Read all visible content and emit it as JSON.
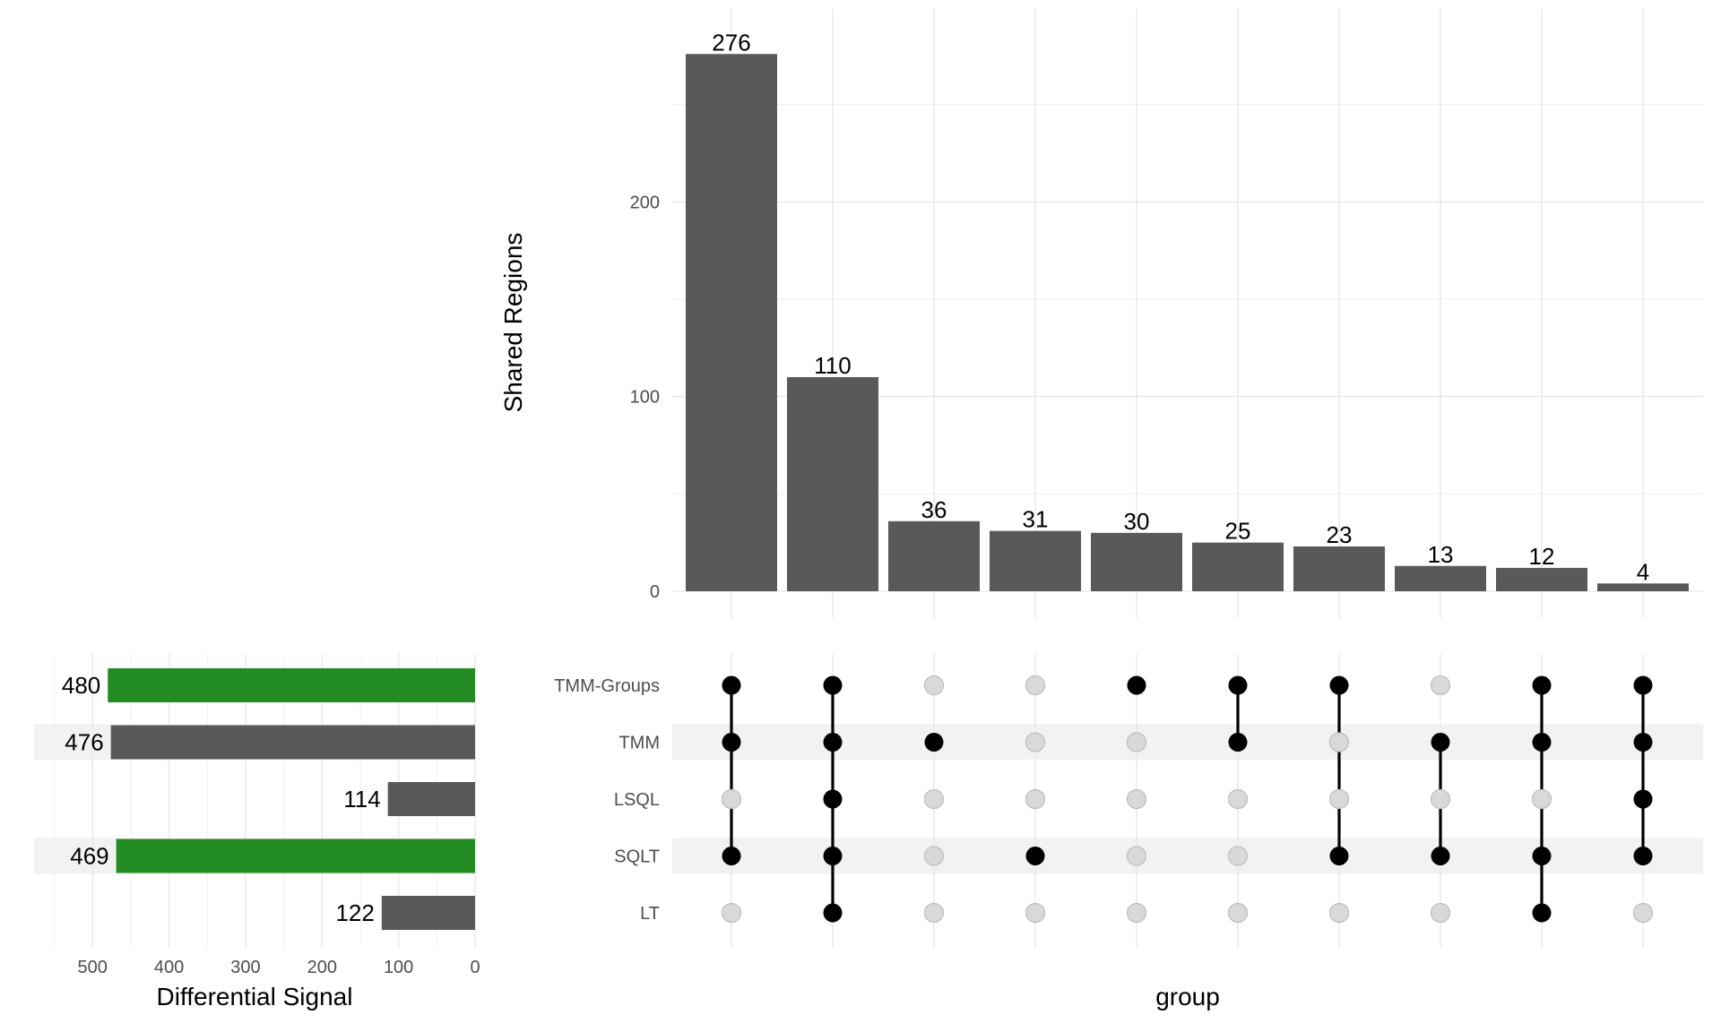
{
  "chart_data": {
    "type": "bar",
    "subtype": "upset",
    "intersections": {
      "ylabel": "Shared Regions",
      "xlabel": "group",
      "ylim": [
        0,
        290
      ],
      "yticks": [
        0,
        100,
        200
      ],
      "values": [
        276,
        110,
        36,
        31,
        30,
        25,
        23,
        13,
        12,
        4
      ],
      "labels": [
        "276",
        "110",
        "36",
        "31",
        "30",
        "25",
        "23",
        "13",
        "12",
        "4"
      ],
      "bar_color": "#595959",
      "grid": true
    },
    "sets": {
      "names": [
        "TMM-Groups",
        "TMM",
        "LSQL",
        "SQLT",
        "LT"
      ],
      "striped_rows": [
        1,
        3
      ],
      "stripe_color": "#f2f2f2"
    },
    "matrix": {
      "columns": [
        [
          1,
          1,
          0,
          1,
          0
        ],
        [
          1,
          1,
          1,
          1,
          1
        ],
        [
          0,
          1,
          0,
          0,
          0
        ],
        [
          0,
          0,
          0,
          1,
          0
        ],
        [
          1,
          0,
          0,
          0,
          0
        ],
        [
          1,
          1,
          0,
          0,
          0
        ],
        [
          1,
          0,
          0,
          1,
          0
        ],
        [
          0,
          1,
          0,
          1,
          0
        ],
        [
          1,
          1,
          0,
          1,
          1
        ],
        [
          1,
          1,
          1,
          1,
          0
        ]
      ],
      "active_color": "#000000",
      "inactive_color": "#d9d9d9",
      "inactive_stroke": "#bdbdbd"
    },
    "set_sizes": {
      "xlabel": "Differential Signal",
      "xlim": [
        550,
        0
      ],
      "xticks": [
        500,
        400,
        300,
        200,
        100,
        0
      ],
      "values": [
        480,
        476,
        114,
        469,
        122
      ],
      "labels": [
        "480",
        "476",
        "114",
        "469",
        "122"
      ],
      "colors": [
        "#228b22",
        "#595959",
        "#595959",
        "#228b22",
        "#595959"
      ]
    }
  }
}
